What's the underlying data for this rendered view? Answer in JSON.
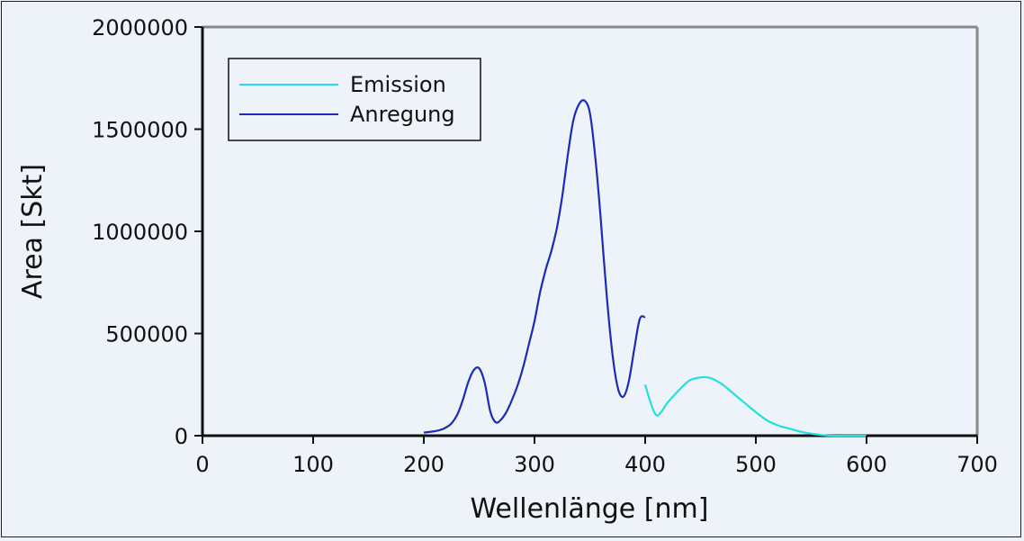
{
  "chart_data": {
    "type": "line",
    "title": "",
    "xlabel": "Wellenlänge [nm]",
    "ylabel": "Area [Skt]",
    "xlim": [
      0,
      700
    ],
    "ylim": [
      0,
      2000000
    ],
    "xticks": [
      0,
      100,
      200,
      300,
      400,
      500,
      600,
      700
    ],
    "xtick_labels": [
      "0",
      "100",
      "200",
      "300",
      "400",
      "500",
      "600",
      "700"
    ],
    "yticks": [
      0,
      500000,
      1000000,
      1500000,
      2000000
    ],
    "ytick_labels": [
      "0",
      "500000",
      "1000000",
      "1500000",
      "2000000"
    ],
    "grid": false,
    "legend_position": "top-left",
    "series": [
      {
        "name": "Emission",
        "color": "#22e0e0",
        "x": [
          400,
          405,
          410,
          415,
          420,
          430,
          440,
          450,
          455,
          460,
          470,
          480,
          490,
          500,
          510,
          520,
          530,
          540,
          550,
          560,
          570,
          580,
          590,
          600
        ],
        "y": [
          250000,
          160000,
          100000,
          120000,
          160000,
          220000,
          270000,
          285000,
          286000,
          280000,
          250000,
          205000,
          160000,
          115000,
          75000,
          50000,
          35000,
          20000,
          10000,
          3000,
          0,
          0,
          0,
          0
        ]
      },
      {
        "name": "Anregung",
        "color": "#1b2bb5",
        "x": [
          200,
          205,
          210,
          215,
          220,
          225,
          230,
          235,
          240,
          245,
          250,
          255,
          260,
          265,
          270,
          275,
          280,
          285,
          290,
          295,
          300,
          305,
          310,
          315,
          320,
          325,
          330,
          335,
          340,
          345,
          350,
          355,
          360,
          365,
          370,
          375,
          380,
          385,
          390,
          395,
          400
        ],
        "y": [
          15000,
          18000,
          22000,
          28000,
          40000,
          60000,
          100000,
          170000,
          260000,
          320000,
          330000,
          260000,
          120000,
          65000,
          80000,
          120000,
          180000,
          250000,
          340000,
          450000,
          560000,
          700000,
          810000,
          900000,
          1010000,
          1170000,
          1370000,
          1540000,
          1620000,
          1640000,
          1580000,
          1360000,
          1050000,
          700000,
          420000,
          240000,
          190000,
          260000,
          420000,
          570000,
          580000
        ]
      }
    ]
  }
}
